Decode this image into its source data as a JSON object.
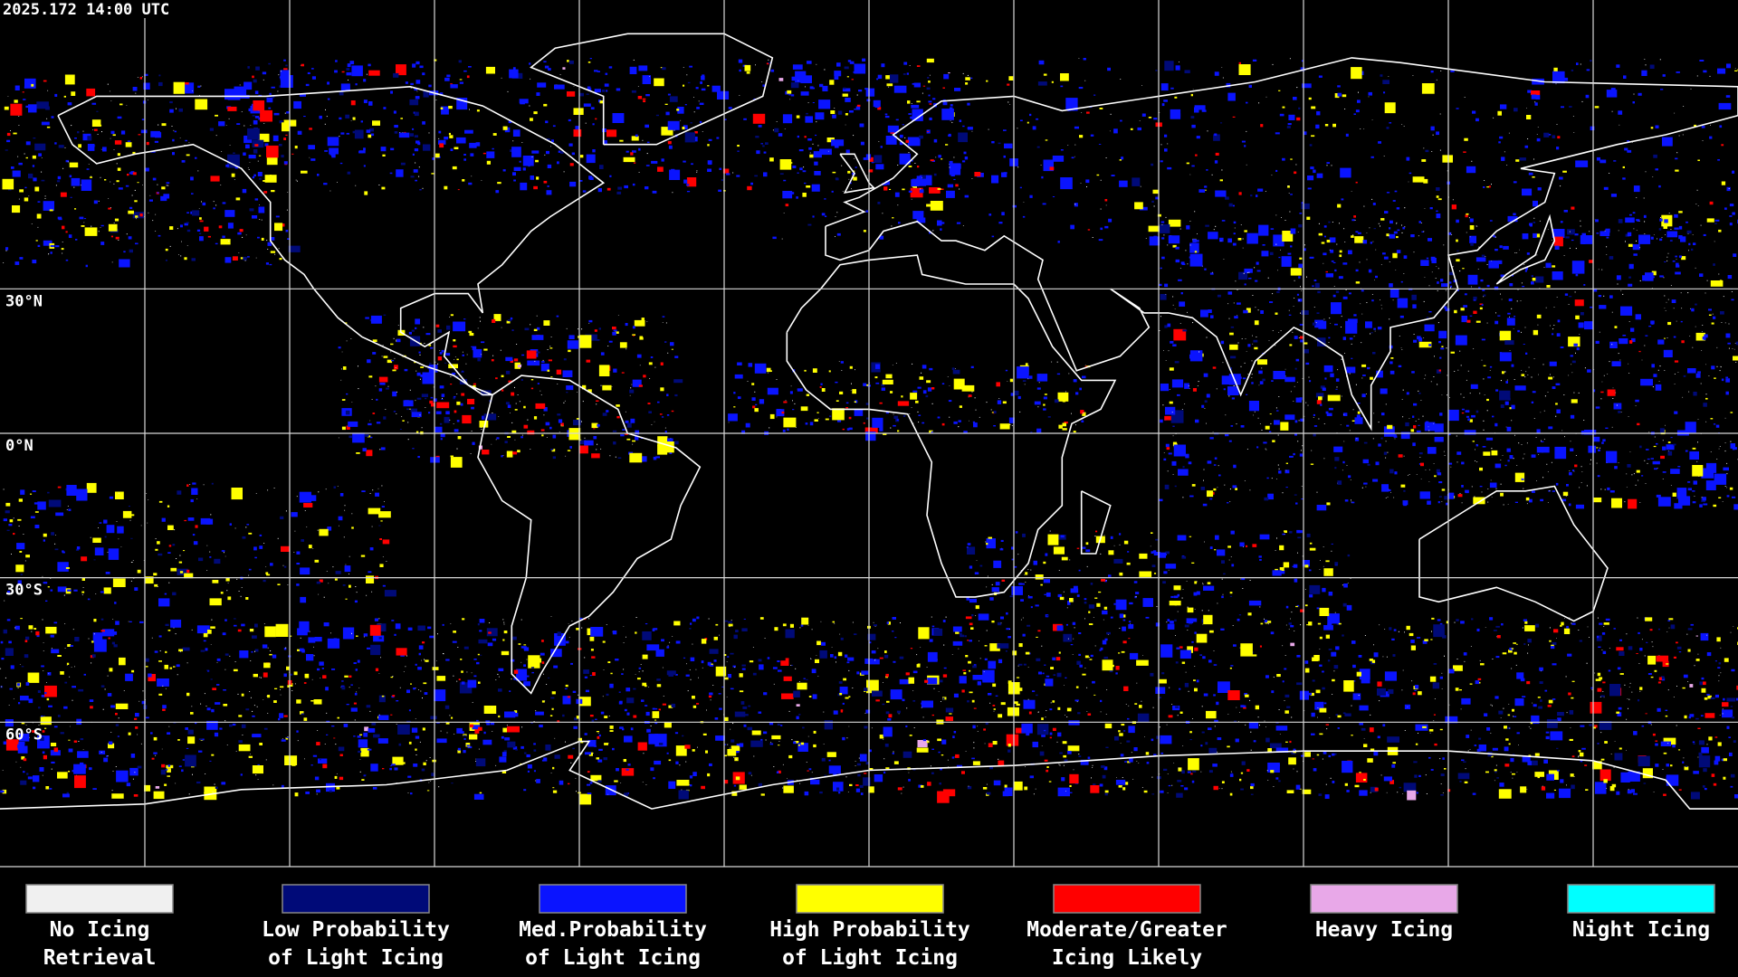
{
  "timestamp": "2025.172 14:00 UTC",
  "lat_labels": [
    "30°N",
    "0°N",
    "30°S",
    "60°S"
  ],
  "legend": [
    {
      "lines": [
        "No Icing",
        "Retrieval"
      ],
      "color": "#f0f0f0"
    },
    {
      "lines": [
        "Low Probability",
        "of Light Icing"
      ],
      "color": "#000a78"
    },
    {
      "lines": [
        "Med.Probability",
        "of Light Icing"
      ],
      "color": "#0a14ff"
    },
    {
      "lines": [
        "High Probability",
        "of Light Icing"
      ],
      "color": "#ffff00"
    },
    {
      "lines": [
        "Moderate/Greater",
        "Icing Likely"
      ],
      "color": "#ff0000"
    },
    {
      "lines": [
        "Heavy Icing"
      ],
      "color": "#e8a8e8"
    },
    {
      "lines": [
        "Night Icing"
      ],
      "color": "#00ffff"
    }
  ]
}
